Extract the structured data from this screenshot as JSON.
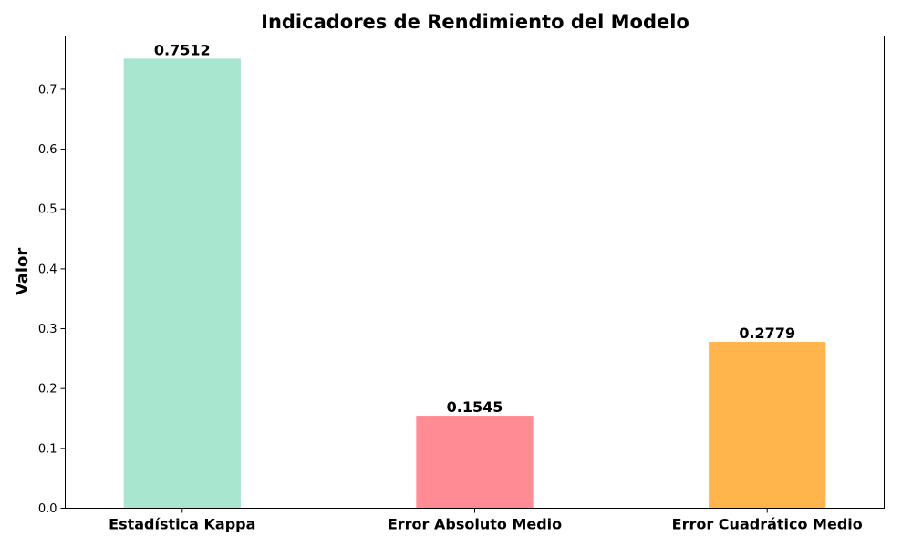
{
  "chart_data": {
    "type": "bar",
    "title": "Indicadores de Rendimiento del Modelo",
    "xlabel": "",
    "ylabel": "Valor",
    "categories": [
      "Estadística Kappa",
      "Error Absoluto Medio",
      "Error Cuadrático Medio"
    ],
    "values": [
      0.7512,
      0.1545,
      0.2779
    ],
    "value_labels": [
      "0.7512",
      "0.1545",
      "0.2779"
    ],
    "colors": [
      "#a8e6cf",
      "#ff8b94",
      "#ffb54c"
    ],
    "ylim": [
      0,
      0.789
    ],
    "yticks": [
      0.0,
      0.1,
      0.2,
      0.3,
      0.4,
      0.5,
      0.6,
      0.7
    ],
    "ytick_labels": [
      "0.0",
      "0.1",
      "0.2",
      "0.3",
      "0.4",
      "0.5",
      "0.6",
      "0.7"
    ],
    "grid": false,
    "legend": "none"
  }
}
